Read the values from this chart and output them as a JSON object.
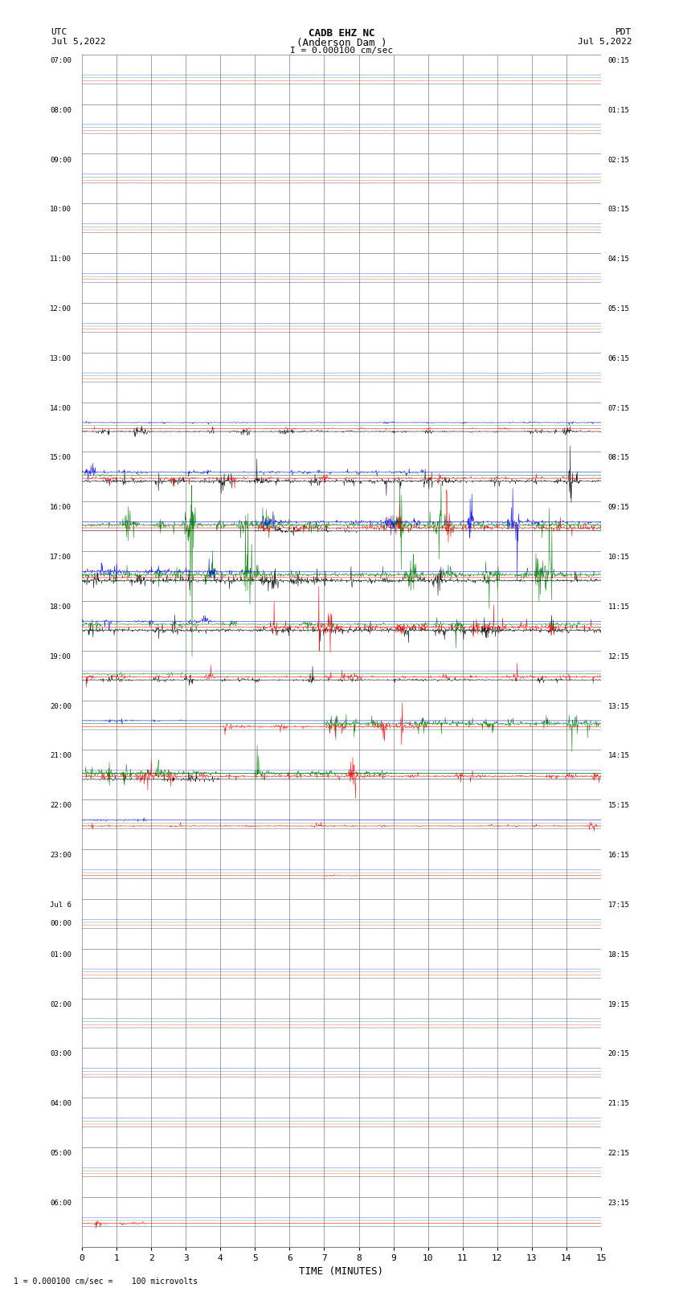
{
  "title_line1": "CADB EHZ NC",
  "title_line2": "(Anderson Dam )",
  "title_line3": "I = 0.000100 cm/sec",
  "xlabel": "TIME (MINUTES)",
  "footer": "1 = 0.000100 cm/sec =    100 microvolts",
  "bg_color": "#ffffff",
  "trace_colors": [
    "#000000",
    "#ff0000",
    "#008000",
    "#0000ff"
  ],
  "grid_color": "#808080",
  "num_rows": 24,
  "minutes_per_row": 15,
  "samples_per_minute": 100,
  "row_labels_utc": [
    "07:00",
    "08:00",
    "09:00",
    "10:00",
    "11:00",
    "12:00",
    "13:00",
    "14:00",
    "15:00",
    "16:00",
    "17:00",
    "18:00",
    "19:00",
    "20:00",
    "21:00",
    "22:00",
    "23:00",
    "Jul 6\n00:00",
    "01:00",
    "02:00",
    "03:00",
    "04:00",
    "05:00",
    "06:00"
  ],
  "row_labels_pdt": [
    "00:15",
    "01:15",
    "02:15",
    "03:15",
    "04:15",
    "05:15",
    "06:15",
    "07:15",
    "08:15",
    "09:15",
    "10:15",
    "11:15",
    "12:15",
    "13:15",
    "14:15",
    "15:15",
    "16:15",
    "17:15",
    "18:15",
    "19:15",
    "20:15",
    "21:15",
    "22:15",
    "23:15"
  ]
}
